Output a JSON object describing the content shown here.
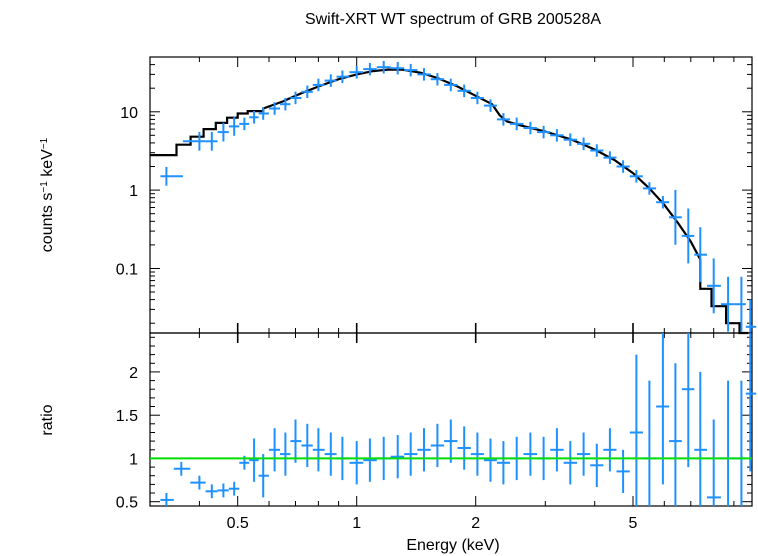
{
  "chart_data": [
    {
      "panel": "spectrum",
      "type": "scatter",
      "title": "Swift-XRT WT spectrum of GRB 200528A",
      "xlabel": "Energy (keV)",
      "ylabel_main": "counts s",
      "ylabel_sup1": "−1",
      "ylabel_mid": " keV",
      "ylabel_sup2": "−1",
      "x_scale": "log",
      "y_scale": "log",
      "xlim": [
        0.3,
        10
      ],
      "ylim": [
        0.015,
        50
      ],
      "x_ticks": [
        {
          "value": 0.5,
          "label": "0.5"
        },
        {
          "value": 1,
          "label": "1"
        },
        {
          "value": 2,
          "label": "2"
        },
        {
          "value": 5,
          "label": "5"
        }
      ],
      "y_ticks": [
        {
          "value": 0.1,
          "label": "0.1"
        },
        {
          "value": 1,
          "label": "1"
        },
        {
          "value": 10,
          "label": "10"
        }
      ],
      "series": [
        {
          "role": "data",
          "color": "#1e90ff",
          "points": [
            {
              "x": 0.33,
              "y": 1.5
            },
            {
              "x": 0.4,
              "y": 4.2
            },
            {
              "x": 0.43,
              "y": 4.2
            },
            {
              "x": 0.46,
              "y": 5.5
            },
            {
              "x": 0.49,
              "y": 6.5
            },
            {
              "x": 0.52,
              "y": 7.0
            },
            {
              "x": 0.55,
              "y": 8.5
            },
            {
              "x": 0.58,
              "y": 9.5
            },
            {
              "x": 0.62,
              "y": 11.0
            },
            {
              "x": 0.66,
              "y": 12.5
            },
            {
              "x": 0.7,
              "y": 15.0
            },
            {
              "x": 0.75,
              "y": 18.0
            },
            {
              "x": 0.8,
              "y": 22.0
            },
            {
              "x": 0.86,
              "y": 25.0
            },
            {
              "x": 0.92,
              "y": 28.0
            },
            {
              "x": 1.0,
              "y": 32.0
            },
            {
              "x": 1.08,
              "y": 35.0
            },
            {
              "x": 1.17,
              "y": 37.0
            },
            {
              "x": 1.27,
              "y": 36.0
            },
            {
              "x": 1.37,
              "y": 34.0
            },
            {
              "x": 1.48,
              "y": 30.0
            },
            {
              "x": 1.6,
              "y": 26.0
            },
            {
              "x": 1.73,
              "y": 22.0
            },
            {
              "x": 1.87,
              "y": 18.5
            },
            {
              "x": 2.02,
              "y": 15.0
            },
            {
              "x": 2.18,
              "y": 12.0
            },
            {
              "x": 2.35,
              "y": 8.0
            },
            {
              "x": 2.54,
              "y": 7.0
            },
            {
              "x": 2.75,
              "y": 6.2
            },
            {
              "x": 2.97,
              "y": 5.5
            },
            {
              "x": 3.21,
              "y": 5.0
            },
            {
              "x": 3.47,
              "y": 4.4
            },
            {
              "x": 3.75,
              "y": 3.9
            },
            {
              "x": 4.05,
              "y": 3.2
            },
            {
              "x": 4.37,
              "y": 2.6
            },
            {
              "x": 4.72,
              "y": 2.0
            },
            {
              "x": 5.1,
              "y": 1.5
            },
            {
              "x": 5.5,
              "y": 1.05
            },
            {
              "x": 5.95,
              "y": 0.7
            },
            {
              "x": 6.4,
              "y": 0.45
            },
            {
              "x": 6.9,
              "y": 0.26
            },
            {
              "x": 7.4,
              "y": 0.15
            },
            {
              "x": 8.0,
              "y": 0.06
            },
            {
              "x": 8.7,
              "y": 0.035
            },
            {
              "x": 9.4,
              "y": 0.035
            },
            {
              "x": 9.9,
              "y": 0.018
            }
          ]
        },
        {
          "role": "model",
          "color": "#000000",
          "step_points": [
            {
              "x": 0.3,
              "y": 2.8
            },
            {
              "x": 0.35,
              "y": 3.8
            },
            {
              "x": 0.38,
              "y": 4.8
            },
            {
              "x": 0.41,
              "y": 6.0
            },
            {
              "x": 0.44,
              "y": 7.2
            },
            {
              "x": 0.47,
              "y": 8.4
            },
            {
              "x": 0.5,
              "y": 9.5
            },
            {
              "x": 0.53,
              "y": 10.2
            },
            {
              "x": 0.58,
              "y": 11.0
            }
          ],
          "curve_points": [
            {
              "x": 0.58,
              "y": 11.0
            },
            {
              "x": 0.65,
              "y": 13.5
            },
            {
              "x": 0.72,
              "y": 17.0
            },
            {
              "x": 0.8,
              "y": 21.0
            },
            {
              "x": 0.9,
              "y": 26.0
            },
            {
              "x": 1.0,
              "y": 30.0
            },
            {
              "x": 1.1,
              "y": 33.0
            },
            {
              "x": 1.2,
              "y": 34.5
            },
            {
              "x": 1.3,
              "y": 34.5
            },
            {
              "x": 1.45,
              "y": 31.5
            },
            {
              "x": 1.6,
              "y": 27.0
            },
            {
              "x": 1.8,
              "y": 21.0
            },
            {
              "x": 2.0,
              "y": 16.0
            },
            {
              "x": 2.2,
              "y": 12.5
            },
            {
              "x": 2.3,
              "y": 9.0
            },
            {
              "x": 2.4,
              "y": 7.5
            },
            {
              "x": 2.6,
              "y": 6.7
            },
            {
              "x": 3.0,
              "y": 5.6
            },
            {
              "x": 3.5,
              "y": 4.4
            },
            {
              "x": 4.0,
              "y": 3.3
            },
            {
              "x": 4.5,
              "y": 2.4
            },
            {
              "x": 5.0,
              "y": 1.65
            },
            {
              "x": 5.5,
              "y": 1.05
            },
            {
              "x": 6.0,
              "y": 0.65
            },
            {
              "x": 6.5,
              "y": 0.38
            },
            {
              "x": 7.0,
              "y": 0.22
            },
            {
              "x": 7.4,
              "y": 0.13
            }
          ],
          "tail_steps": [
            {
              "x": 7.4,
              "y": 0.085
            },
            {
              "x": 7.9,
              "y": 0.055
            },
            {
              "x": 8.6,
              "y": 0.033
            },
            {
              "x": 9.3,
              "y": 0.02
            },
            {
              "x": 9.8,
              "y": 0.012
            }
          ]
        }
      ]
    },
    {
      "panel": "ratio",
      "type": "scatter",
      "xlabel": "Energy (keV)",
      "ylabel": "ratio",
      "x_scale": "log",
      "y_scale": "linear",
      "xlim": [
        0.3,
        10
      ],
      "ylim": [
        0.45,
        2.45
      ],
      "y_ticks": [
        {
          "value": 0.5,
          "label": "0.5"
        },
        {
          "value": 1,
          "label": "1"
        },
        {
          "value": 1.5,
          "label": "1.5"
        },
        {
          "value": 2,
          "label": "2"
        }
      ],
      "reference_line": {
        "y": 1.0,
        "color": "#00dd00"
      },
      "series": [
        {
          "role": "data",
          "color": "#1e90ff",
          "points": [
            {
              "x": 0.33,
              "y": 0.52
            },
            {
              "x": 0.36,
              "y": 0.88
            },
            {
              "x": 0.4,
              "y": 0.72
            },
            {
              "x": 0.43,
              "y": 0.62
            },
            {
              "x": 0.46,
              "y": 0.63
            },
            {
              "x": 0.49,
              "y": 0.65
            },
            {
              "x": 0.52,
              "y": 0.95
            },
            {
              "x": 0.55,
              "y": 0.98
            },
            {
              "x": 0.58,
              "y": 0.8
            },
            {
              "x": 0.62,
              "y": 1.1
            },
            {
              "x": 0.66,
              "y": 1.05
            },
            {
              "x": 0.7,
              "y": 1.2
            },
            {
              "x": 0.75,
              "y": 1.15
            },
            {
              "x": 0.8,
              "y": 1.1
            },
            {
              "x": 0.86,
              "y": 1.05
            },
            {
              "x": 0.92,
              "y": 1.0
            },
            {
              "x": 1.0,
              "y": 0.95
            },
            {
              "x": 1.08,
              "y": 0.98
            },
            {
              "x": 1.17,
              "y": 1.0
            },
            {
              "x": 1.27,
              "y": 1.02
            },
            {
              "x": 1.37,
              "y": 1.05
            },
            {
              "x": 1.48,
              "y": 1.1
            },
            {
              "x": 1.6,
              "y": 1.15
            },
            {
              "x": 1.73,
              "y": 1.2
            },
            {
              "x": 1.87,
              "y": 1.12
            },
            {
              "x": 2.02,
              "y": 1.05
            },
            {
              "x": 2.18,
              "y": 0.98
            },
            {
              "x": 2.35,
              "y": 0.95
            },
            {
              "x": 2.54,
              "y": 1.0
            },
            {
              "x": 2.75,
              "y": 1.05
            },
            {
              "x": 2.97,
              "y": 1.0
            },
            {
              "x": 3.21,
              "y": 1.1
            },
            {
              "x": 3.47,
              "y": 0.95
            },
            {
              "x": 3.75,
              "y": 1.05
            },
            {
              "x": 4.05,
              "y": 0.92
            },
            {
              "x": 4.37,
              "y": 1.1
            },
            {
              "x": 4.72,
              "y": 0.85
            },
            {
              "x": 5.1,
              "y": 1.3
            },
            {
              "x": 5.5,
              "y": 1.0
            },
            {
              "x": 5.95,
              "y": 1.6
            },
            {
              "x": 6.4,
              "y": 1.2
            },
            {
              "x": 6.9,
              "y": 1.8
            },
            {
              "x": 7.4,
              "y": 1.1
            },
            {
              "x": 8.0,
              "y": 0.55
            },
            {
              "x": 8.7,
              "y": 1.0
            },
            {
              "x": 9.4,
              "y": 1.0
            },
            {
              "x": 9.9,
              "y": 1.75
            }
          ]
        }
      ]
    }
  ]
}
